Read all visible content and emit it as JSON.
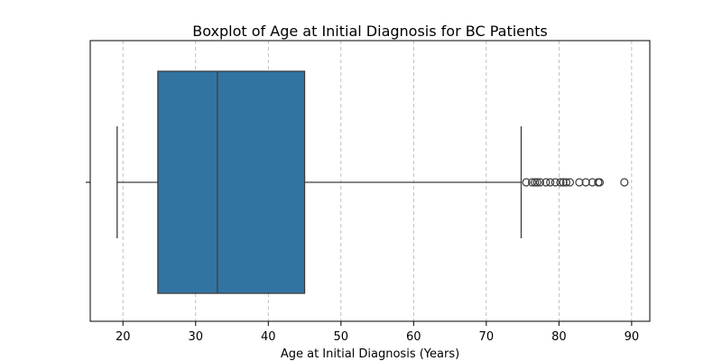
{
  "chart_data": {
    "type": "boxplot",
    "title": "Boxplot of Age at Initial Diagnosis for BC Patients",
    "xlabel": "Age at Initial Diagnosis (Years)",
    "ylabel": "",
    "xlim": [
      15.5,
      92.5
    ],
    "xticks": [
      20,
      30,
      40,
      50,
      60,
      70,
      80,
      90
    ],
    "orientation": "horizontal",
    "grid": "x-dashed",
    "box": {
      "whisker_low": 19.2,
      "q1": 24.8,
      "median": 33.0,
      "q3": 45.0,
      "whisker_high": 74.8,
      "color": "#3274a1",
      "edge_color": "#3d3d3d"
    },
    "outliers": [
      75.5,
      76.3,
      76.7,
      77.0,
      77.4,
      78.2,
      78.8,
      79.5,
      80.2,
      80.6,
      81.0,
      81.5,
      82.8,
      83.7,
      84.6,
      85.4,
      85.6,
      89.0
    ]
  }
}
